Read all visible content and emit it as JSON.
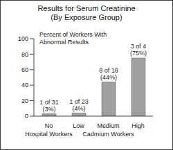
{
  "chart_data": {
    "type": "bar",
    "title": "Results for Serum Creatinine",
    "subtitle": "(By Exposure Group)",
    "y_label": "Percent of Workers With Abnormal Results",
    "categories": [
      "No",
      "Low",
      "Medium",
      "High"
    ],
    "annotations": [
      "Hospital Workers",
      "Cadmium Workers"
    ],
    "values": [
      3,
      4,
      44,
      75
    ],
    "value_labels": [
      "1 of 31 (3%)",
      "1 of 23 (4%)",
      "8 of 18 (44%)",
      "3 of 4 (75%)"
    ],
    "data_labels": true,
    "color": "#a0a0a0",
    "ylim": [
      0,
      100
    ],
    "yticks": [
      0,
      20,
      40,
      60,
      80,
      100
    ],
    "grid": false
  }
}
